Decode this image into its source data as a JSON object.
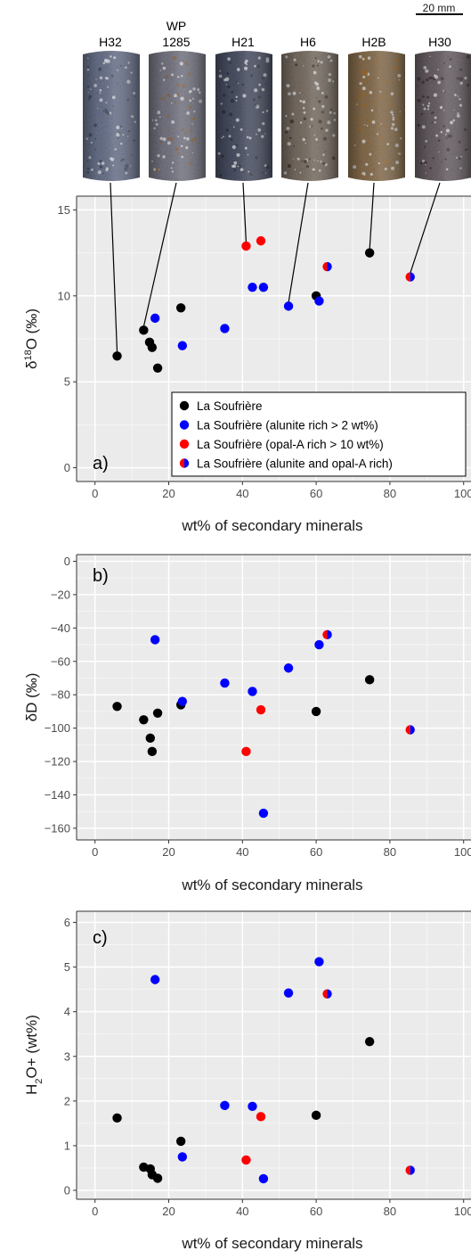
{
  "colors": {
    "la_soufriere": "#000000",
    "alunite_rich": "#0000ff",
    "opal_rich": "#ff0000",
    "panel_bg": "#ebebeb",
    "grid": "#ffffff"
  },
  "cores": {
    "scale_bar": "20 mm",
    "samples": [
      {
        "id": "H32",
        "label_lines": [
          "H32"
        ],
        "x": 6,
        "y": 6.5
      },
      {
        "id": "WP1285",
        "label_lines": [
          "WP",
          "1285"
        ],
        "x": 13.2,
        "y": 8.0
      },
      {
        "id": "H21",
        "label_lines": [
          "H21"
        ],
        "x": 41,
        "y": 12.9
      },
      {
        "id": "H6",
        "label_lines": [
          "H6"
        ],
        "x": 52.5,
        "y": 9.4
      },
      {
        "id": "H2B",
        "label_lines": [
          "H2B"
        ],
        "x": 74.5,
        "y": 12.5
      },
      {
        "id": "H30",
        "label_lines": [
          "H30"
        ],
        "x": 85.5,
        "y": 11.1
      }
    ]
  },
  "chart_data": [
    {
      "type": "scatter",
      "panel_label": "a)",
      "xlabel": "wt% of secondary minerals",
      "ylabel_html": [
        "δ",
        "18",
        "O (‰)"
      ],
      "xlim": [
        -5,
        102
      ],
      "ylim": [
        -0.8,
        15.8
      ],
      "x_ticks": [
        0,
        20,
        40,
        60,
        80,
        100
      ],
      "y_ticks": [
        0,
        5,
        10,
        15
      ],
      "grid": true,
      "legend_position": "bottom-right",
      "legend": [
        {
          "key": "la_soufriere",
          "label": "La Soufrière"
        },
        {
          "key": "alunite_rich",
          "label": "La Soufrière (alunite rich > 2 wt%)"
        },
        {
          "key": "opal_rich",
          "label": "La Soufrière (opal-A rich > 10 wt%)"
        },
        {
          "key": "both",
          "label": "La Soufrière (alunite and opal-A rich)"
        }
      ],
      "series": [
        {
          "key": "la_soufriere",
          "points": [
            [
              6,
              6.5
            ],
            [
              13.2,
              8.0
            ],
            [
              14.8,
              7.3
            ],
            [
              15.5,
              7.0
            ],
            [
              17,
              5.8
            ],
            [
              23.3,
              9.3
            ],
            [
              60,
              10.0
            ],
            [
              74.5,
              12.5
            ]
          ]
        },
        {
          "key": "alunite_rich",
          "points": [
            [
              16.3,
              8.7
            ],
            [
              23.7,
              7.1
            ],
            [
              35.2,
              8.1
            ],
            [
              42.7,
              10.5
            ],
            [
              45.7,
              10.5
            ],
            [
              52.5,
              9.4
            ],
            [
              60.8,
              9.7
            ]
          ]
        },
        {
          "key": "opal_rich",
          "points": [
            [
              41,
              12.9
            ],
            [
              45,
              13.2
            ]
          ]
        },
        {
          "key": "both",
          "points": [
            [
              63,
              11.7
            ],
            [
              85.5,
              11.1
            ]
          ]
        }
      ]
    },
    {
      "type": "scatter",
      "panel_label": "b)",
      "xlabel": "wt% of secondary minerals",
      "ylabel": "δD (‰)",
      "xlim": [
        -5,
        102
      ],
      "ylim": [
        -167,
        4
      ],
      "x_ticks": [
        0,
        20,
        40,
        60,
        80,
        100
      ],
      "y_ticks": [
        0,
        -20,
        -40,
        -60,
        -80,
        -100,
        -120,
        -140,
        -160
      ],
      "grid": true,
      "series": [
        {
          "key": "la_soufriere",
          "points": [
            [
              6,
              -87
            ],
            [
              13.2,
              -95
            ],
            [
              15,
              -106
            ],
            [
              15.5,
              -114
            ],
            [
              17,
              -91
            ],
            [
              23.3,
              -86
            ],
            [
              60,
              -90
            ],
            [
              74.5,
              -71
            ]
          ]
        },
        {
          "key": "alunite_rich",
          "points": [
            [
              16.3,
              -47
            ],
            [
              23.7,
              -84
            ],
            [
              35.2,
              -73
            ],
            [
              42.7,
              -78
            ],
            [
              45.7,
              -151
            ],
            [
              52.5,
              -64
            ],
            [
              60.8,
              -50
            ]
          ]
        },
        {
          "key": "opal_rich",
          "points": [
            [
              41,
              -114
            ],
            [
              45,
              -89
            ]
          ]
        },
        {
          "key": "both",
          "points": [
            [
              63,
              -44
            ],
            [
              85.5,
              -101
            ]
          ]
        }
      ]
    },
    {
      "type": "scatter",
      "panel_label": "c)",
      "xlabel": "wt% of secondary minerals",
      "ylabel_html": [
        "H",
        "2",
        "O+ (wt%)"
      ],
      "xlim": [
        -5,
        102
      ],
      "ylim": [
        -0.2,
        6.25
      ],
      "x_ticks": [
        0,
        20,
        40,
        60,
        80,
        100
      ],
      "y_ticks": [
        0,
        1,
        2,
        3,
        4,
        5,
        6
      ],
      "grid": true,
      "series": [
        {
          "key": "la_soufriere",
          "points": [
            [
              6,
              1.62
            ],
            [
              13.2,
              0.52
            ],
            [
              15,
              0.48
            ],
            [
              15.5,
              0.35
            ],
            [
              17,
              0.27
            ],
            [
              23.3,
              1.1
            ],
            [
              60,
              1.68
            ],
            [
              74.5,
              3.33
            ]
          ]
        },
        {
          "key": "alunite_rich",
          "points": [
            [
              16.3,
              4.72
            ],
            [
              23.7,
              0.75
            ],
            [
              35.2,
              1.9
            ],
            [
              42.7,
              1.88
            ],
            [
              45.7,
              0.26
            ],
            [
              52.5,
              4.42
            ],
            [
              60.8,
              5.12
            ]
          ]
        },
        {
          "key": "opal_rich",
          "points": [
            [
              41,
              0.68
            ],
            [
              45,
              1.65
            ]
          ]
        },
        {
          "key": "both",
          "points": [
            [
              63,
              4.4
            ],
            [
              85.5,
              0.45
            ]
          ]
        }
      ]
    }
  ]
}
